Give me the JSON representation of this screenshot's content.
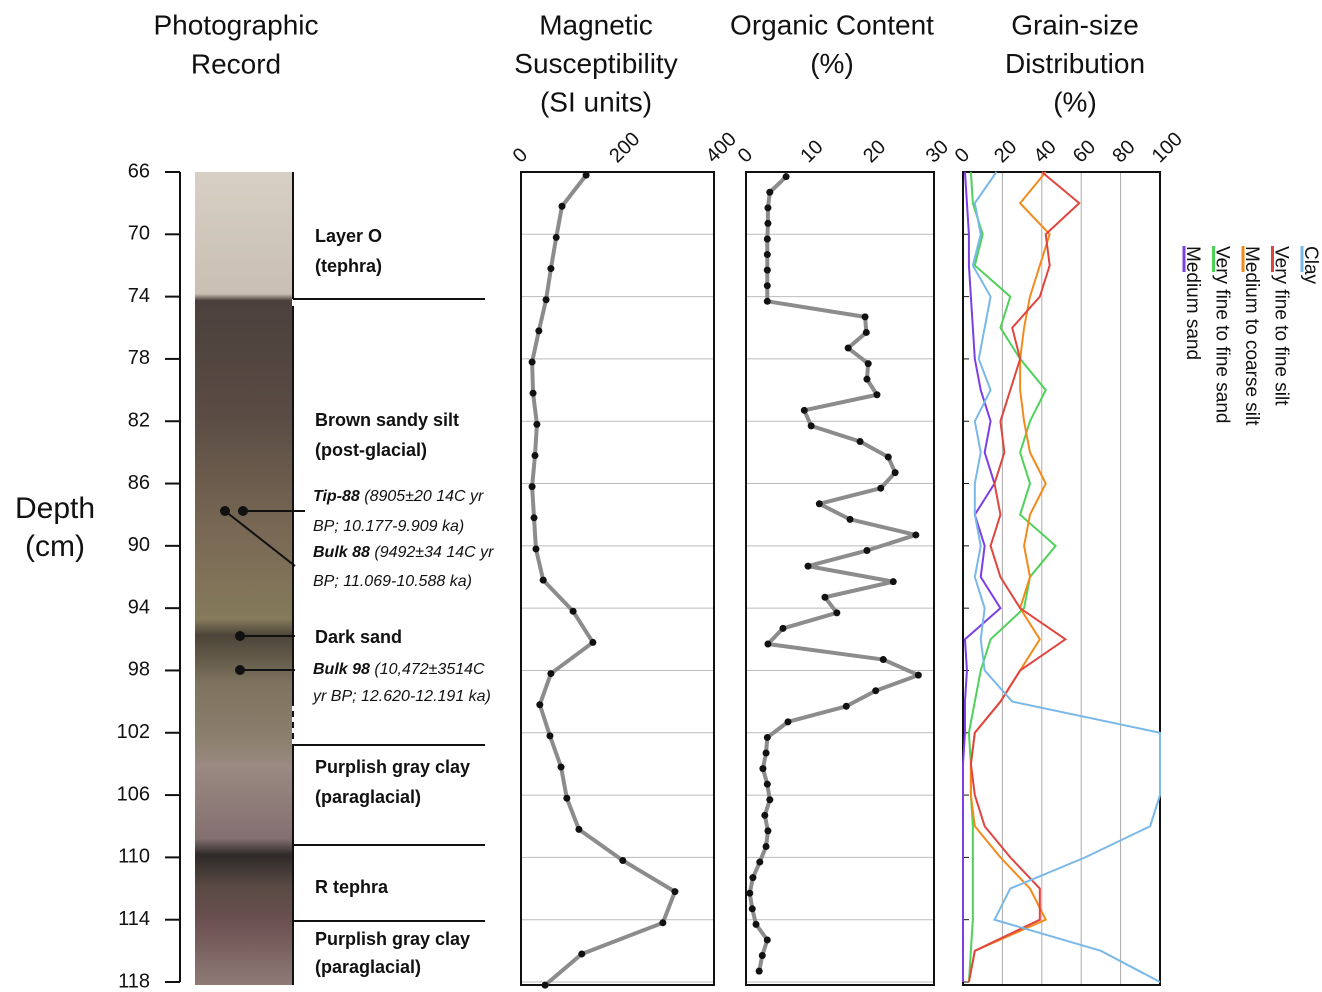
{
  "titles": {
    "photo": [
      "Photographic",
      "Record"
    ]
  },
  "depth_axis": {
    "label_lines": [
      "Depth",
      "(cm)"
    ],
    "ylim": [
      66,
      118
    ],
    "yticks": [
      66,
      70,
      74,
      78,
      82,
      86,
      90,
      94,
      98,
      102,
      106,
      110,
      114,
      118
    ]
  },
  "core": {
    "layers": [
      {
        "lines": [
          "Layer O",
          "(tephra)"
        ]
      },
      {
        "lines": [
          "Brown sandy silt",
          "(post-glacial)"
        ]
      },
      {
        "lines": [
          "Dark sand"
        ]
      },
      {
        "lines": [
          "Purplish gray clay",
          "(paraglacial)"
        ]
      },
      {
        "lines": [
          "R tephra"
        ]
      },
      {
        "lines": [
          "Purplish gray clay",
          "(paraglacial)"
        ]
      }
    ],
    "samples": [
      {
        "name": "Tip-88",
        "detail": "(8905±20 14C yr",
        "detail2": "BP; 10.177-9.909 ka)"
      },
      {
        "name": "Bulk 88",
        "detail": "(9492±34 14C yr",
        "detail2": "BP; 11.069-10.588 ka)"
      },
      {
        "name": "Bulk 98",
        "detail": "(10,472±3514C",
        "detail2": "yr BP; 12.620-12.191 ka)"
      }
    ]
  },
  "chart_data": [
    {
      "type": "line",
      "title_lines": [
        "Magnetic",
        "Susceptibility",
        "(SI units)"
      ],
      "xlim": [
        0,
        400
      ],
      "xticks": [
        0,
        200,
        400
      ],
      "color": "#8c8c8c",
      "marker_color": "#111111",
      "depth": [
        66.2,
        68.2,
        70.2,
        72.2,
        74.2,
        76.2,
        78.2,
        80.2,
        82.2,
        84.2,
        86.2,
        88.2,
        90.2,
        92.2,
        94.2,
        96.2,
        98.2,
        100.2,
        102.2,
        104.2,
        106.2,
        108.2,
        110.2,
        112.2,
        114.2,
        116.2,
        118.2
      ],
      "values": [
        135,
        85,
        73,
        62,
        52,
        37,
        23,
        25,
        33,
        29,
        23,
        27,
        31,
        46,
        108,
        149,
        62,
        39,
        60,
        83,
        95,
        120,
        211,
        319,
        294,
        126,
        50
      ]
    },
    {
      "type": "line",
      "title_lines": [
        "Organic Content",
        "(%)"
      ],
      "xlim": [
        0,
        30
      ],
      "xticks": [
        0,
        10,
        20,
        30
      ],
      "color": "#8c8c8c",
      "marker_color": "#111111",
      "depth": [
        66.3,
        67.3,
        68.3,
        69.3,
        70.3,
        71.3,
        72.3,
        73.3,
        74.3,
        75.3,
        76.3,
        77.3,
        78.3,
        79.3,
        80.3,
        81.3,
        82.3,
        83.3,
        84.3,
        85.3,
        86.3,
        87.3,
        88.3,
        89.3,
        90.3,
        91.3,
        92.3,
        93.3,
        94.3,
        95.3,
        96.3,
        97.3,
        98.3,
        99.3,
        100.3,
        101.3,
        102.3,
        103.3,
        104.3,
        105.3,
        106.3,
        107.3,
        108.3,
        109.3,
        110.3,
        111.3,
        112.3,
        113.3,
        114.3,
        115.3,
        116.3,
        117.3
      ],
      "values": [
        6.4,
        3.8,
        3.5,
        3.5,
        3.4,
        3.4,
        3.4,
        3.4,
        3.4,
        19.0,
        19.2,
        16.3,
        19.5,
        19.3,
        20.9,
        9.3,
        10.4,
        18.2,
        22.7,
        23.8,
        21.5,
        11.7,
        16.6,
        27.1,
        19.3,
        9.9,
        23.5,
        12.6,
        14.5,
        5.9,
        3.5,
        21.9,
        27.5,
        20.7,
        16.0,
        6.7,
        3.4,
        3.2,
        2.7,
        3.4,
        3.8,
        3.0,
        3.5,
        3.2,
        2.2,
        1.1,
        0.6,
        1.0,
        1.6,
        3.4,
        2.6,
        2.1
      ]
    },
    {
      "type": "multiline",
      "title_lines": [
        "Grain-size",
        "Distribution",
        "(%)"
      ],
      "xlim": [
        0,
        100
      ],
      "xticks": [
        0,
        20,
        40,
        60,
        80,
        100
      ],
      "depth": [
        66,
        68,
        70,
        72,
        74,
        76,
        78,
        80,
        82,
        84,
        86,
        88,
        90,
        92,
        94,
        96,
        98,
        100,
        102,
        104,
        106,
        108,
        110,
        112,
        114,
        116,
        118
      ],
      "series": [
        {
          "name": "Medium sand",
          "color": "#7b3fe4",
          "values": [
            1,
            2,
            3,
            3,
            4,
            5,
            6,
            9,
            14,
            11,
            16,
            6,
            11,
            9,
            19,
            1,
            2,
            1,
            1,
            0,
            0,
            0,
            0,
            0,
            0,
            0,
            0
          ]
        },
        {
          "name": "Very fine to fine sand",
          "color": "#4fd15a",
          "values": [
            4,
            5,
            10,
            6,
            24,
            19,
            29,
            42,
            34,
            29,
            34,
            29,
            47,
            34,
            31,
            14,
            9,
            6,
            3,
            4,
            4,
            5,
            5,
            5,
            5,
            4,
            3
          ]
        },
        {
          "name": "Medium to coarse silt",
          "color": "#f28a1c",
          "values": [
            42,
            29,
            44,
            39,
            34,
            31,
            29,
            29,
            31,
            34,
            42,
            34,
            31,
            34,
            29,
            39,
            29,
            19,
            6,
            4,
            4,
            6,
            19,
            34,
            42,
            6,
            3
          ]
        },
        {
          "name": "Very fine to fine silt",
          "color": "#e0453f",
          "values": [
            40,
            59,
            42,
            44,
            39,
            25,
            29,
            24,
            19,
            21,
            16,
            19,
            14,
            19,
            29,
            52,
            29,
            19,
            6,
            4,
            6,
            11,
            24,
            39,
            39,
            6,
            3
          ]
        },
        {
          "name": "Clay",
          "color": "#7ab8e8",
          "values": [
            17,
            6,
            9,
            5,
            14,
            11,
            8,
            14,
            6,
            9,
            6,
            6,
            9,
            6,
            11,
            9,
            11,
            25,
            100,
            100,
            100,
            95,
            62,
            24,
            16,
            70,
            100
          ]
        }
      ]
    }
  ]
}
